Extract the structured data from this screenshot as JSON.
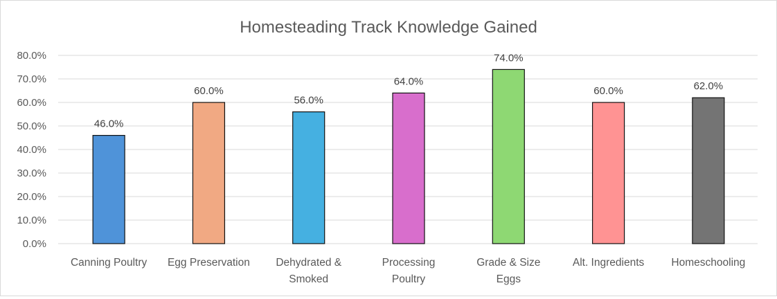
{
  "chart_data": {
    "type": "bar",
    "title": "Homesteading Track Knowledge Gained",
    "xlabel": "",
    "ylabel": "",
    "categories": [
      [
        "Canning Poultry"
      ],
      [
        "Egg Preservation"
      ],
      [
        "Dehydrated &",
        "Smoked"
      ],
      [
        "Processing",
        "Poultry"
      ],
      [
        "Grade & Size",
        "Eggs"
      ],
      [
        "Alt. Ingredients"
      ],
      [
        "Homeschooling"
      ]
    ],
    "values": [
      46.0,
      60.0,
      56.0,
      64.0,
      74.0,
      60.0,
      62.0
    ],
    "data_labels": [
      "46.0%",
      "60.0%",
      "56.0%",
      "64.0%",
      "74.0%",
      "60.0%",
      "62.0%"
    ],
    "colors": [
      "#4f93d9",
      "#f1a983",
      "#45b0e1",
      "#d86ecc",
      "#8ed873",
      "#ff9393",
      "#747474"
    ],
    "ylim": [
      0,
      80
    ],
    "yticks": [
      "0.0%",
      "10.0%",
      "20.0%",
      "30.0%",
      "40.0%",
      "50.0%",
      "60.0%",
      "70.0%",
      "80.0%"
    ],
    "grid": true,
    "legend": "none"
  }
}
